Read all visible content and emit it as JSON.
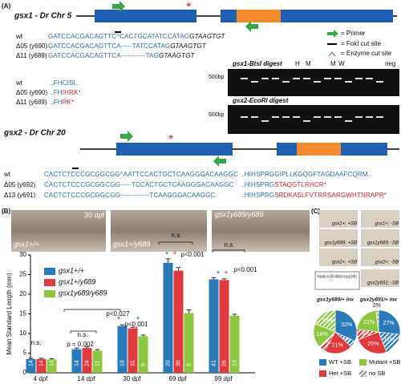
{
  "panel_a": {
    "label": "(A)",
    "gsx1_title": "gsx1 - Dr Chr 5",
    "legend": [
      "= Primer",
      "= FokI cut site",
      "= Enzyme cut site"
    ],
    "gsx1_dna": [
      {
        "name": "wt",
        "parts": [
          "GATCCACGACAGTTC^CACTGCATATCCATAG",
          "GTAAGTGT"
        ]
      },
      {
        "name": "Δ05 (y690)",
        "parts": [
          "GATCCACGACAGTTCA-----TATCCATAG",
          "GTAAGTGT"
        ]
      },
      {
        "name": "Δ11 (y689)",
        "parts": [
          "GATCCACGACAGTTCA-----------TAG",
          "GTAAGTGT"
        ]
      }
    ],
    "gsx1_protein": [
      {
        "name": "wt",
        "parts": [
          "..FHCISI.."
        ]
      },
      {
        "name": "Δ05 (y690)",
        "parts": [
          "..FH",
          "IHRK*"
        ]
      },
      {
        "name": "Δ11 (y689)",
        "parts": [
          "..FH",
          "RK*"
        ]
      }
    ],
    "gels": [
      {
        "title": "gsx1-BtsI digest",
        "marker": "500bp",
        "lanes": [
          "H",
          "M",
          "M",
          "W",
          "neg"
        ]
      },
      {
        "title": "gsx2-EcoRI digest",
        "marker": "500bp"
      }
    ],
    "gsx2_title": "gsx2 - Dr Chr 20",
    "gsx2_dna": [
      {
        "name": "wt",
        "parts": [
          "CACTCTCCCGCGGCGG^AATTCCACTGCTCAAGGGACAAGGC"
        ]
      },
      {
        "name": "Δ05 (y692)",
        "parts": [
          "CACTCTCCCGCGGCGG-----TCCACTGCTCAAGGGACAAGGC"
        ]
      },
      {
        "name": "Δ13 (y691)",
        "parts": [
          "CACTCTCCCGCGGCGG-------------TCAAGGGACAAGGC"
        ]
      }
    ],
    "gsx2_protein": [
      {
        "parts": [
          "..HIHSPRGGIPLLKGQGFTAGDAAFCQRM.."
        ]
      },
      {
        "parts": [
          "..HIHSPRG",
          "STAQGTLRHCR*"
        ]
      },
      {
        "parts": [
          "..HIHSPRG",
          "SRDKASLFVTRRSARGWHTNRAPR*"
        ]
      }
    ]
  },
  "panel_b": {
    "label": "(B)",
    "photo_stage": "30 dpf",
    "photos": [
      "gsx1+/+",
      "gsx1+/y689",
      "gsx1y689/y689"
    ]
  },
  "panel_c": {
    "label": "(C)",
    "photos": [
      "gsx1+; +SB",
      "gsx1+; -SB",
      "gsx1y689; +SB",
      "gsx1y689; -SB",
      "gsx2+; +SB",
      "gsx2+; -SB",
      "gsx2y691; -SB"
    ],
    "note": "Virtually no SB inflation in gsx2y691",
    "legend": [
      {
        "name": "WT +SB",
        "color": "#2a7ab9"
      },
      {
        "name": "Mutant +SB",
        "color": "#8dc63f"
      },
      {
        "name": "Het +SB",
        "color": "#e0393e"
      },
      {
        "name": "no SB",
        "color": "#999999",
        "hatched": true
      }
    ]
  },
  "chart_data": [
    {
      "type": "bar",
      "ylabel": "Mean Standard Length (mm)",
      "categories": [
        "4 dpf",
        "14 dpf",
        "30 dpf",
        "69 dpf",
        "99 dpf"
      ],
      "ylim": [
        0,
        30
      ],
      "yticks": [
        0,
        5,
        10,
        15,
        20,
        25,
        30
      ],
      "series": [
        {
          "name": "gsx1+/+",
          "color": "#2a7ab9",
          "values": [
            3.5,
            6.0,
            11.9,
            28.0,
            23.8
          ],
          "errors": [
            0.2,
            0.3,
            0.3,
            1.0,
            0.4
          ],
          "n": [
            14,
            14,
            19,
            20,
            41
          ]
        },
        {
          "name": "gsx1+/y689",
          "color": "#e0393e",
          "values": [
            3.5,
            6.3,
            11.3,
            26.0,
            23.6
          ],
          "errors": [
            0.2,
            0.3,
            0.3,
            0.8,
            0.3
          ],
          "n": [
            14,
            24,
            31,
            30,
            26
          ]
        },
        {
          "name": "gsx1y689/y689",
          "color": "#8dc63f",
          "values": [
            3.4,
            5.6,
            9.3,
            15.2,
            14.5
          ],
          "errors": [
            0.2,
            0.3,
            0.3,
            0.8,
            0.4
          ],
          "n": [
            14,
            11,
            9,
            9,
            13
          ]
        }
      ],
      "annotations": [
        {
          "text": "n.s.",
          "color": "#111"
        },
        {
          "text": "n.s.",
          "color": "#111"
        },
        {
          "text": "p = 0.002",
          "color": "#111"
        },
        {
          "text": "p<0.027",
          "color": "#111"
        },
        {
          "text": "p<0.001",
          "color": "#111"
        },
        {
          "text": "n.s.",
          "color": "#111"
        },
        {
          "text": "p<0.001",
          "color": "#111"
        },
        {
          "text": "n.s.",
          "color": "#111"
        },
        {
          "text": "p<0.001",
          "color": "#111"
        },
        {
          "text": "*",
          "color": "#2a7ab9"
        },
        {
          "text": "*",
          "color": "#2a7ab9"
        },
        {
          "text": "*",
          "color": "#e0393e"
        },
        {
          "text": "*",
          "color": "#2a7ab9"
        },
        {
          "text": "*",
          "color": "#e0393e"
        },
        {
          "text": "*",
          "color": "#2a7ab9"
        },
        {
          "text": "*",
          "color": "#e0393e"
        }
      ]
    },
    {
      "type": "pie",
      "title": "gsx1y689/+ inx",
      "values": [
        32,
        5,
        21,
        5,
        18,
        19
      ],
      "value_labels": [
        "32%",
        "5%",
        "21%",
        "5%",
        "18%",
        "19%"
      ],
      "colors": [
        "#2a7ab9",
        "#2a7ab9",
        "#e0393e",
        "#e0393e",
        "#8dc63f",
        "#8dc63f"
      ],
      "hatched": [
        false,
        true,
        false,
        true,
        false,
        true
      ]
    },
    {
      "type": "pie",
      "title": "gsx2y691/+ inx",
      "values": [
        27,
        17,
        25,
        8,
        21,
        2
      ],
      "value_labels": [
        "27%",
        "17%",
        "25%",
        "8%",
        "21%",
        "2%"
      ],
      "colors": [
        "#2a7ab9",
        "#2a7ab9",
        "#e0393e",
        "#e0393e",
        "#8dc63f",
        "#8dc63f"
      ],
      "hatched": [
        false,
        true,
        false,
        true,
        false,
        true
      ]
    }
  ]
}
